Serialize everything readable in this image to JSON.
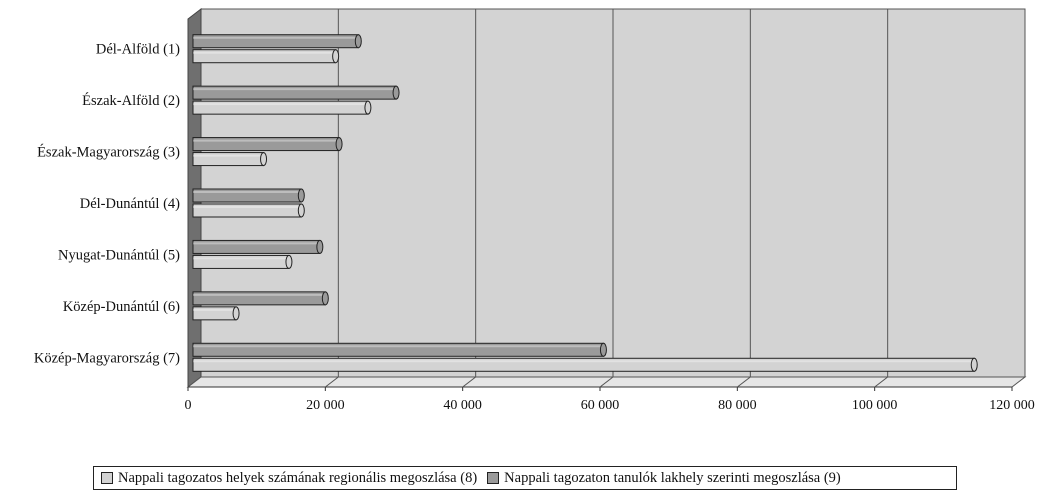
{
  "chart_data": {
    "type": "bar",
    "orientation": "horizontal",
    "categories": [
      "Dél-Alföld (1)",
      "Észak-Alföld (2)",
      "Észak-Magyarország (3)",
      "Dél-Dunántúl (4)",
      "Nyugat-Dunántúl (5)",
      "Közép-Dunántúl (6)",
      "Közép-Magyarország (7)"
    ],
    "series": [
      {
        "name": "Nappali tagozatos helyek számának regionális megoszlása (8)",
        "color": "#d3d3d3",
        "values": [
          21500,
          26200,
          11000,
          16500,
          14700,
          7000,
          114500
        ]
      },
      {
        "name": "Nappali tagozaton tanulók lakhely szerinti megoszlása (9)",
        "color": "#9a9a9a",
        "values": [
          24800,
          30300,
          22000,
          16500,
          19200,
          20000,
          60500
        ]
      }
    ],
    "xlim": [
      0,
      120000
    ],
    "x_ticks": [
      "0",
      "20 000",
      "40 000",
      "60 000",
      "80 000",
      "100 000",
      "120 000"
    ],
    "grid": true,
    "legend_position": "bottom"
  }
}
